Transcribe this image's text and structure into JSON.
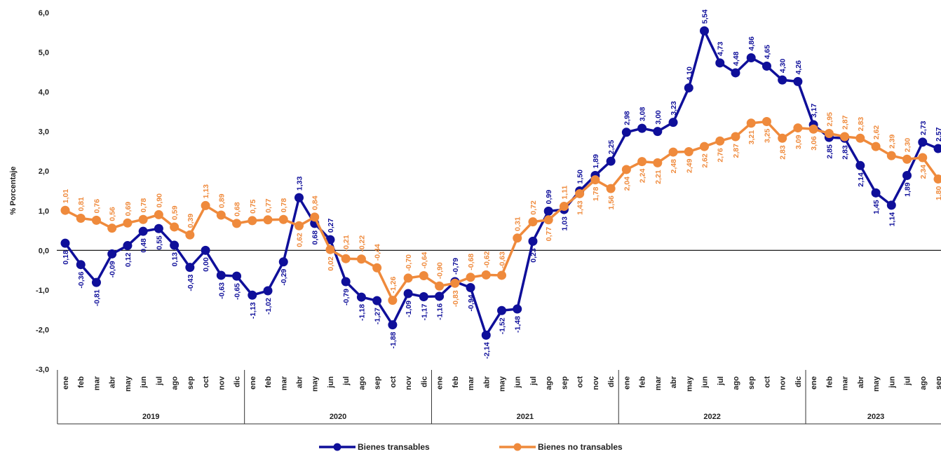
{
  "chart_data": {
    "type": "line",
    "y_label": "% Porcentaje",
    "groups": [
      {
        "name": "2019",
        "categories": [
          "ene",
          "feb",
          "mar",
          "abr",
          "may",
          "jun",
          "jul",
          "ago",
          "sep",
          "oct",
          "nov",
          "dic"
        ]
      },
      {
        "name": "2020",
        "categories": [
          "ene",
          "feb",
          "mar",
          "abr",
          "may",
          "jun",
          "jul",
          "ago",
          "sep",
          "oct",
          "nov",
          "dic"
        ]
      },
      {
        "name": "2021",
        "categories": [
          "ene",
          "feb",
          "mar",
          "abr",
          "may",
          "jun",
          "jul",
          "ago",
          "sep",
          "oct",
          "nov",
          "dic"
        ]
      },
      {
        "name": "2022",
        "categories": [
          "ene",
          "feb",
          "mar",
          "abr",
          "may",
          "jun",
          "jul",
          "ago",
          "sep",
          "oct",
          "nov",
          "dic"
        ]
      },
      {
        "name": "2023",
        "categories": [
          "ene",
          "feb",
          "mar",
          "abr",
          "may",
          "jun",
          "jul",
          "ago",
          "sep"
        ]
      }
    ],
    "series": [
      {
        "name": "Bienes transables",
        "color": "#0f0f9a",
        "values": [
          0.18,
          -0.36,
          -0.81,
          -0.09,
          0.12,
          0.48,
          0.55,
          0.13,
          -0.43,
          0.0,
          -0.63,
          -0.65,
          -1.13,
          -1.02,
          -0.29,
          1.33,
          0.68,
          0.27,
          -0.79,
          -1.18,
          -1.27,
          -1.88,
          -1.09,
          -1.17,
          -1.16,
          -0.79,
          -0.94,
          -2.14,
          -1.52,
          -1.48,
          0.23,
          0.99,
          1.03,
          1.5,
          1.89,
          2.25,
          2.98,
          3.08,
          3.0,
          3.23,
          4.1,
          5.54,
          4.73,
          4.48,
          4.86,
          4.65,
          4.3,
          4.26,
          3.17,
          2.85,
          2.83,
          2.14,
          1.45,
          1.14,
          1.89,
          2.73,
          2.57
        ],
        "value_labels": [
          "0,18",
          "-0,36",
          "-0,81",
          "-0,09",
          "0,12",
          "0,48",
          "0,55",
          "0,13",
          "-0,43",
          "0,00",
          "-0,63",
          "-0,65",
          "-1,13",
          "-1,02",
          "-0,29",
          "1,33",
          "0,68",
          "0,27",
          "-0,79",
          "-1,18",
          "-1,27",
          "-1,88",
          "-1,09",
          "-1,17",
          "-1,16",
          "-0,79",
          "-0,94",
          "-2,14",
          "-1,52",
          "-1,48",
          "0,23",
          "0,99",
          "1,03",
          "1,50",
          "1,89",
          "2,25",
          "2,98",
          "3,08",
          "3,00",
          "3,23",
          "4,10",
          "5,54",
          "4,73",
          "4,48",
          "4,86",
          "4,65",
          "4,30",
          "4,26",
          "3,17",
          "2,85",
          "2,83",
          "2,14",
          "1,45",
          "1,14",
          "1,89",
          "2,73",
          "2,57"
        ]
      },
      {
        "name": "Bienes no transables",
        "color": "#ef8a3c",
        "values": [
          1.01,
          0.81,
          0.76,
          0.56,
          0.69,
          0.78,
          0.9,
          0.59,
          0.39,
          1.13,
          0.89,
          0.68,
          0.75,
          0.77,
          0.78,
          0.62,
          0.84,
          0.02,
          -0.21,
          -0.22,
          -0.44,
          -1.26,
          -0.7,
          -0.64,
          -0.9,
          -0.83,
          -0.68,
          -0.62,
          -0.63,
          0.31,
          0.72,
          0.77,
          1.11,
          1.43,
          1.78,
          1.56,
          2.04,
          2.24,
          2.21,
          2.48,
          2.49,
          2.62,
          2.76,
          2.87,
          3.21,
          3.25,
          2.83,
          3.09,
          3.06,
          2.95,
          2.87,
          2.83,
          2.62,
          2.39,
          2.3,
          2.34,
          1.8
        ],
        "value_labels": [
          "1,01",
          "0,81",
          "0,76",
          "0,56",
          "0,69",
          "0,78",
          "0,90",
          "0,59",
          "0,39",
          "1,13",
          "0,89",
          "0,68",
          "0,75",
          "0,77",
          "0,78",
          "0,62",
          "0,84",
          "0,02",
          "-0,21",
          "-0,22",
          "-0,44",
          "-1,26",
          "-0,70",
          "-0,64",
          "-0,90",
          "-0,83",
          "-0,68",
          "-0,62",
          "-0,63",
          "0,31",
          "0,72",
          "0,77",
          "1,11",
          "1,43",
          "1,78",
          "1,56",
          "2,04",
          "2,24",
          "2,21",
          "2,48",
          "2,49",
          "2,62",
          "2,76",
          "2,87",
          "3,21",
          "3,25",
          "2,83",
          "3,09",
          "3,06",
          "2,95",
          "2,87",
          "2,83",
          "2,62",
          "2,39",
          "2,30",
          "2,34",
          "1,80"
        ]
      }
    ],
    "ylim": [
      -3,
      6
    ],
    "yticks": [
      {
        "value": -3,
        "label": "-3,0"
      },
      {
        "value": -2,
        "label": "-2,0"
      },
      {
        "value": -1,
        "label": "-1,0"
      },
      {
        "value": 0,
        "label": "0,0"
      },
      {
        "value": 1,
        "label": "1,0"
      },
      {
        "value": 2,
        "label": "2,0"
      },
      {
        "value": 3,
        "label": "3,0"
      },
      {
        "value": 4,
        "label": "4,0"
      },
      {
        "value": 5,
        "label": "5,0"
      },
      {
        "value": 6,
        "label": "6,0"
      }
    ],
    "grid": false
  }
}
